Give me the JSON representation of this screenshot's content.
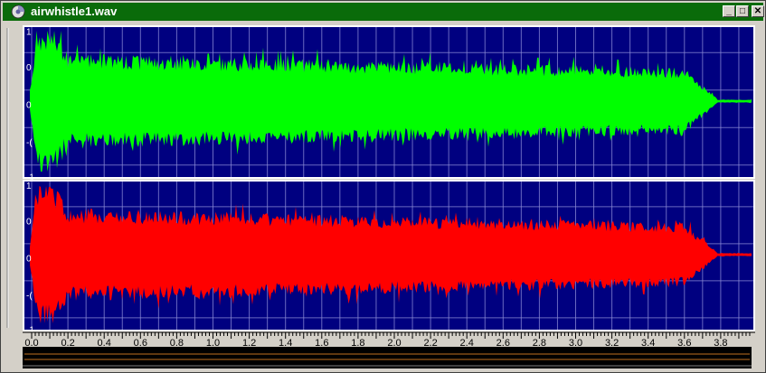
{
  "window": {
    "title": "airwhistle1.wav",
    "buttons": {
      "minimize": "_",
      "maximize": "□",
      "close": "✕"
    }
  },
  "icons": {
    "app": "audio-disc-icon"
  },
  "colors": {
    "titlebar": "#0a6b0a",
    "plot_background": "#000080",
    "channel_left": "#00ff00",
    "channel_right": "#ff0000",
    "grid": "#8c8cd6"
  },
  "channels": [
    {
      "id": "left",
      "y_tick_labels": [
        "1",
        "0",
        "0",
        "-(",
        "-1"
      ]
    },
    {
      "id": "right",
      "y_tick_labels": [
        "1",
        "0",
        "0",
        "-(",
        "-1"
      ]
    }
  ],
  "timeline": {
    "labels": [
      "0.0",
      "0.2",
      "0.4",
      "0.6",
      "0.8",
      "1.0",
      "1.2",
      "1.4",
      "1.6",
      "1.8",
      "2.0",
      "2.2",
      "2.4",
      "2.6",
      "2.8",
      "3.0",
      "3.2",
      "3.4",
      "3.6",
      "3.8"
    ]
  }
}
